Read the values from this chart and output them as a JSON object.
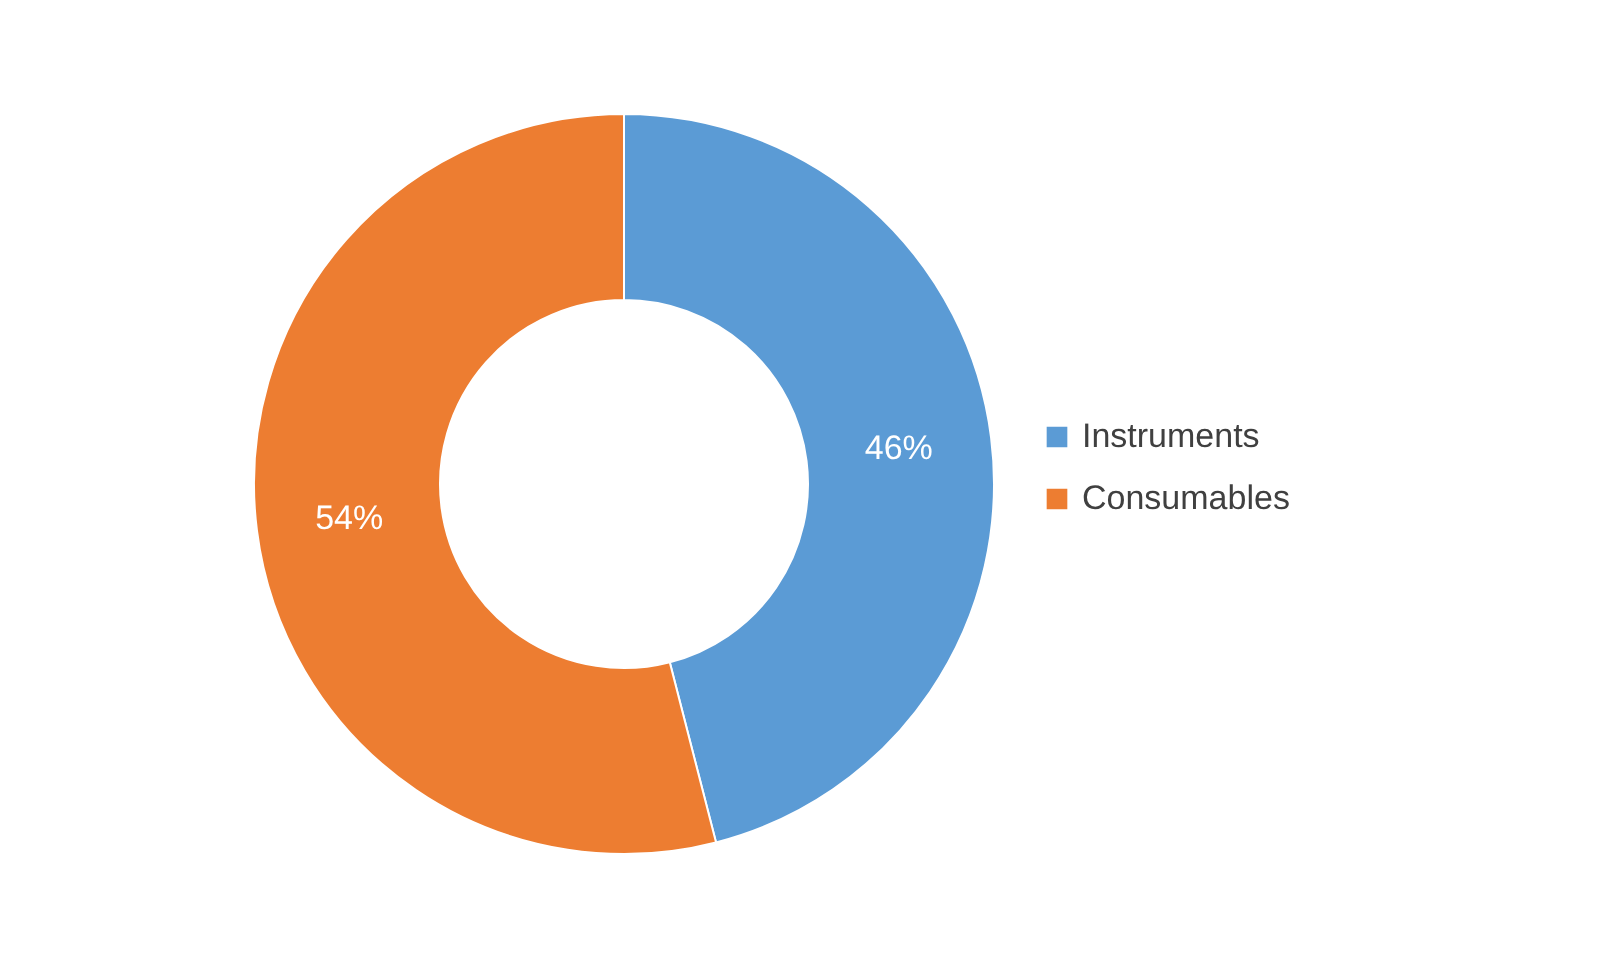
{
  "chart_data": {
    "type": "donut",
    "categories": [
      "Instruments",
      "Consumables"
    ],
    "values": [
      46,
      54
    ],
    "colors": [
      "#5b9bd5",
      "#ed7d31"
    ],
    "value_labels": [
      "46%",
      "54%"
    ],
    "legend": "right"
  }
}
